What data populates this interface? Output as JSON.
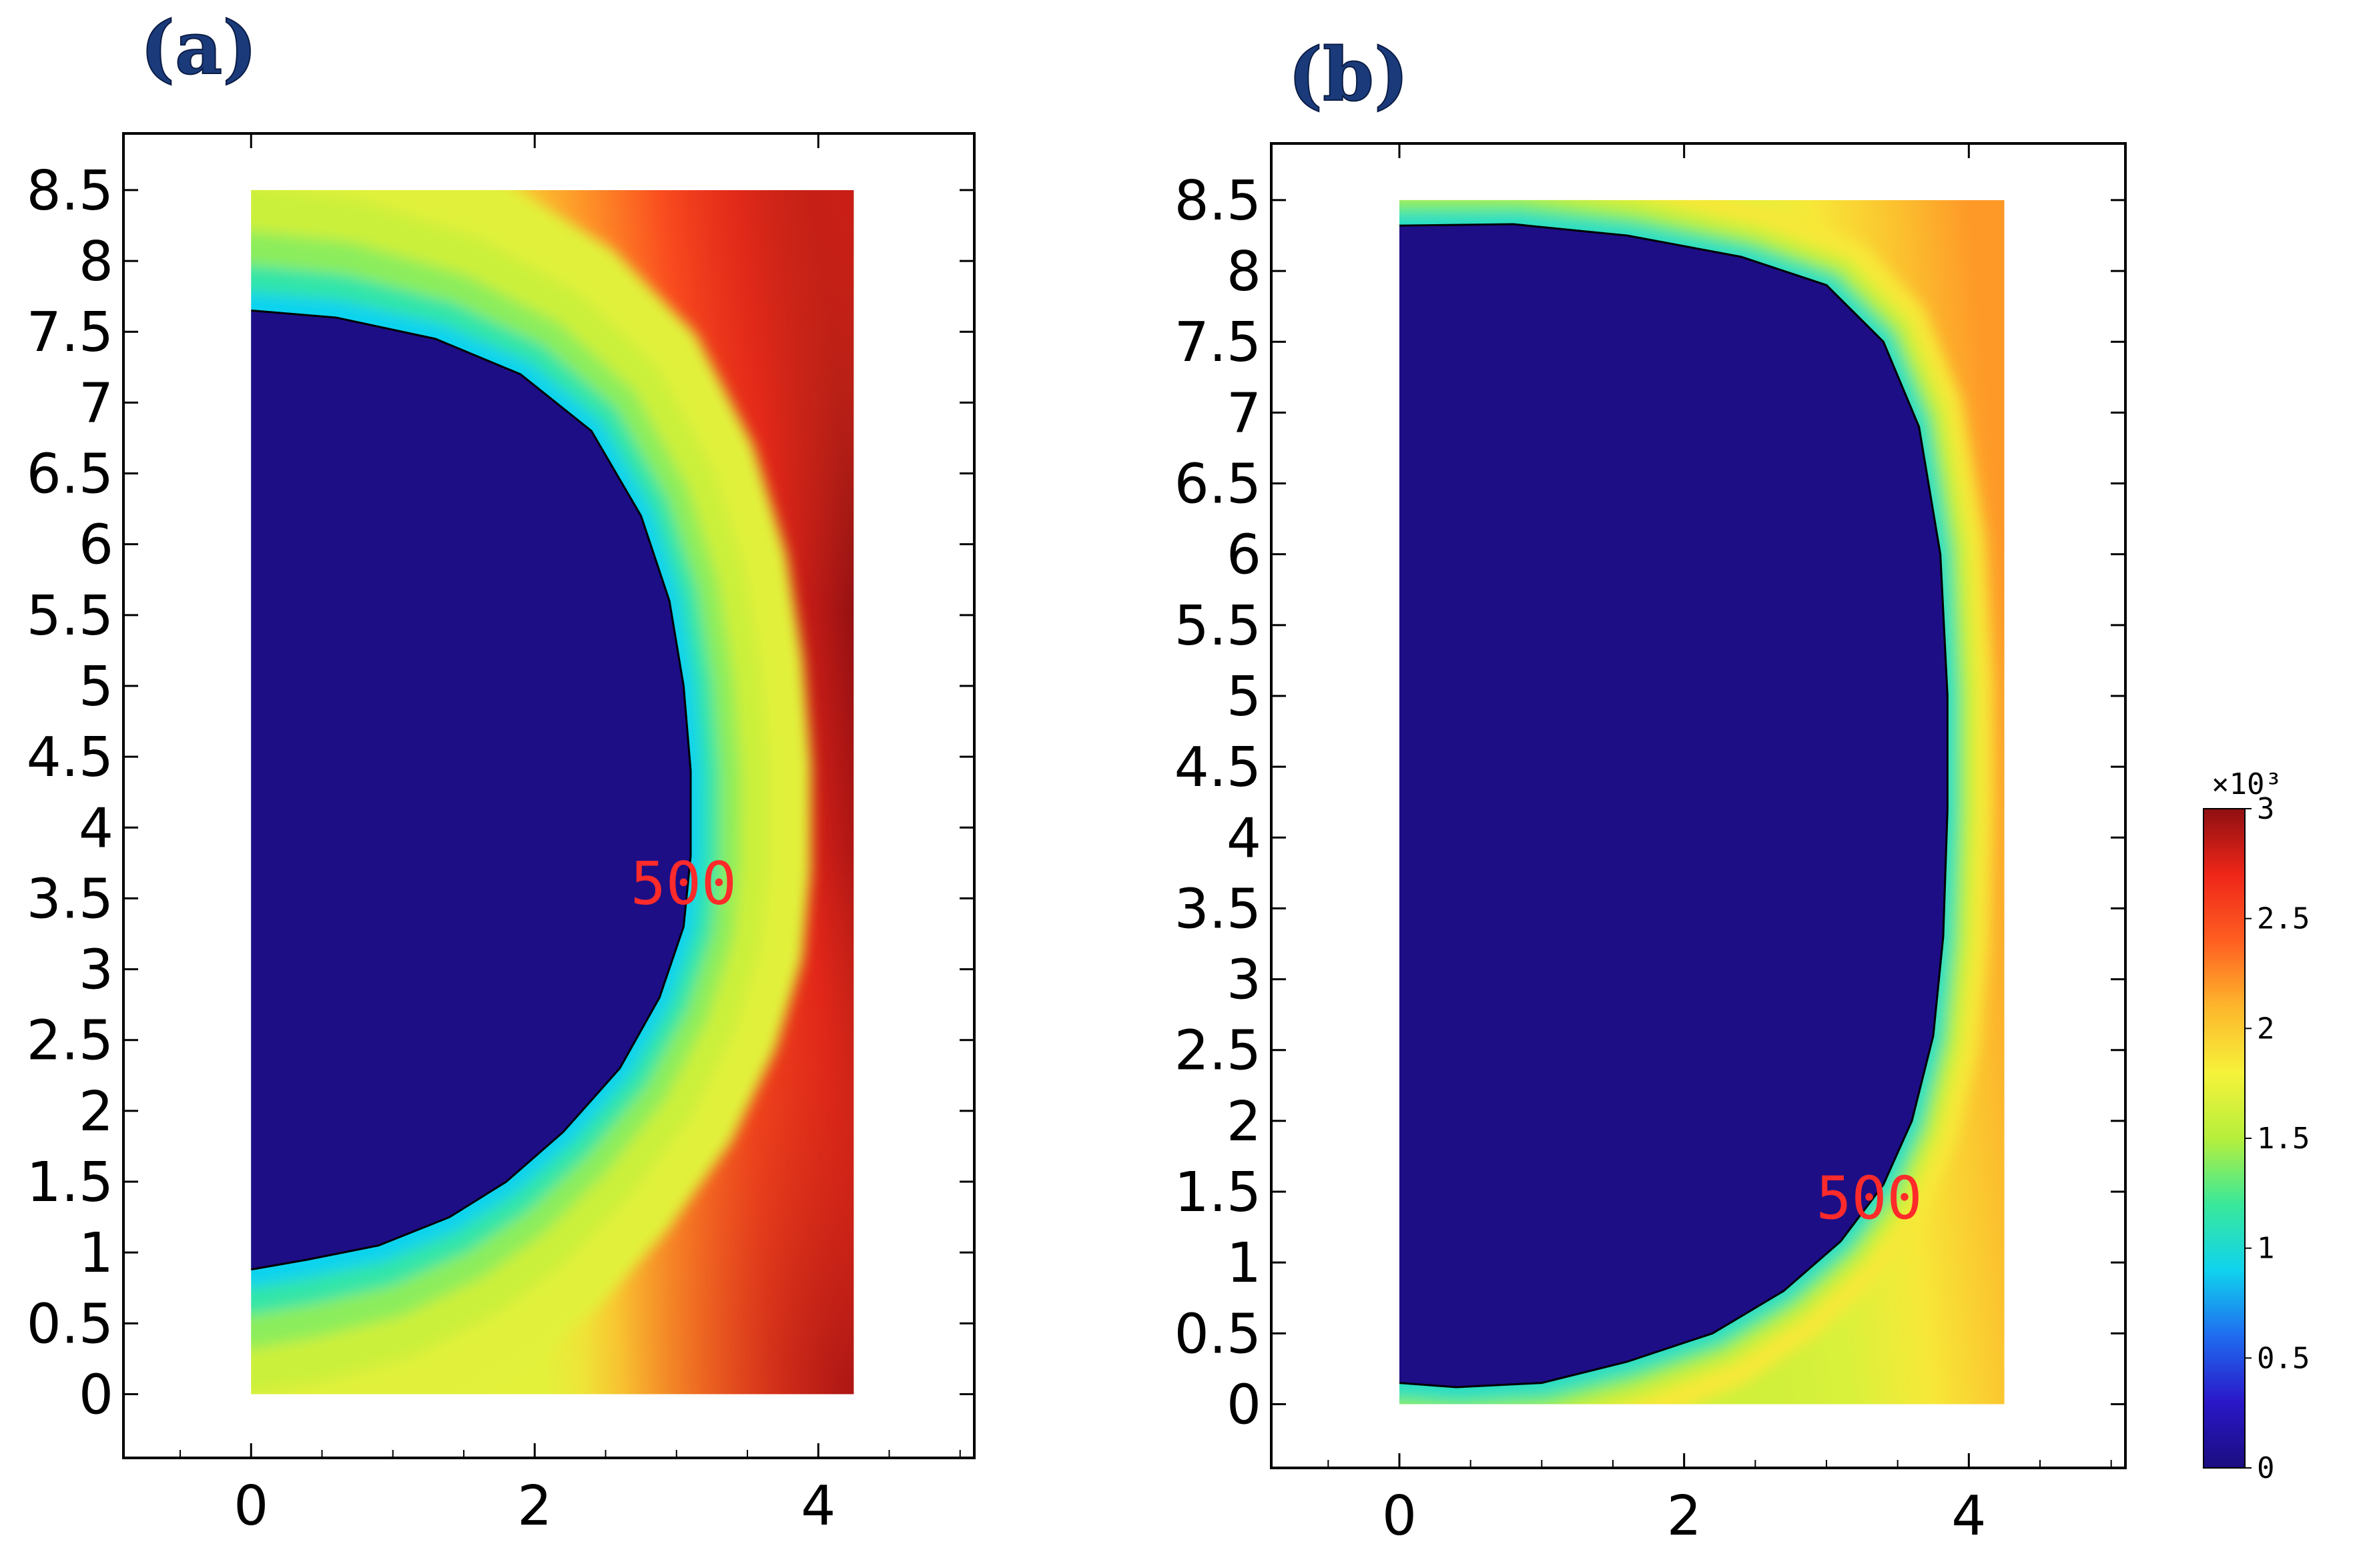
{
  "figure": {
    "panels": [
      {
        "id": "a",
        "label": "(a)"
      },
      {
        "id": "b",
        "label": "(b)"
      }
    ],
    "colorbar": {
      "multiplier": "×10³",
      "ticks": [
        "0",
        "0.5",
        "1",
        "1.5",
        "2",
        "2.5",
        "3"
      ],
      "colormap": [
        "#1b0d7f",
        "#2a17c8",
        "#1f6cf0",
        "#10d3ee",
        "#39e89a",
        "#b6ef3c",
        "#f6f23a",
        "#fdb62c",
        "#ff5e21",
        "#ef2619",
        "#8f0f12"
      ]
    }
  },
  "chart_data": [
    {
      "type": "heatmap",
      "panel": "(a)",
      "title": "",
      "xlabel": "",
      "ylabel": "",
      "xlim": [
        -0.9,
        5.1
      ],
      "ylim": [
        -0.45,
        8.9
      ],
      "xticks": [
        "0",
        "2",
        "4"
      ],
      "yticks": [
        "0",
        "0.5",
        "1",
        "1.5",
        "2",
        "2.5",
        "3",
        "3.5",
        "4",
        "4.5",
        "5",
        "5.5",
        "6",
        "6.5",
        "7",
        "7.5",
        "8",
        "8.5"
      ],
      "domain": {
        "x": [
          0,
          4.25
        ],
        "y": [
          0,
          8.5
        ]
      },
      "contour": {
        "level": 500,
        "label": "500",
        "label_at": [
          3.05,
          3.6
        ],
        "points": [
          [
            0,
            0.88
          ],
          [
            0.4,
            0.95
          ],
          [
            0.9,
            1.05
          ],
          [
            1.4,
            1.25
          ],
          [
            1.8,
            1.5
          ],
          [
            2.2,
            1.85
          ],
          [
            2.6,
            2.3
          ],
          [
            2.88,
            2.8
          ],
          [
            3.05,
            3.3
          ],
          [
            3.1,
            3.8
          ],
          [
            3.1,
            4.4
          ],
          [
            3.05,
            5.0
          ],
          [
            2.95,
            5.6
          ],
          [
            2.75,
            6.2
          ],
          [
            2.4,
            6.8
          ],
          [
            1.9,
            7.2
          ],
          [
            1.3,
            7.45
          ],
          [
            0.6,
            7.6
          ],
          [
            0,
            7.65
          ]
        ]
      },
      "field": {
        "inside_value": 0,
        "boundary_value": 500,
        "far_value": 3000
      }
    },
    {
      "type": "heatmap",
      "panel": "(b)",
      "title": "",
      "xlabel": "",
      "ylabel": "",
      "xlim": [
        -0.9,
        5.1
      ],
      "ylim": [
        -0.45,
        8.9
      ],
      "xticks": [
        "0",
        "2",
        "4"
      ],
      "yticks": [
        "0",
        "0.5",
        "1",
        "1.5",
        "2",
        "2.5",
        "3",
        "3.5",
        "4",
        "4.5",
        "5",
        "5.5",
        "6",
        "6.5",
        "7",
        "7.5",
        "8",
        "8.5"
      ],
      "domain": {
        "x": [
          0,
          4.25
        ],
        "y": [
          0,
          8.5
        ]
      },
      "contour": {
        "level": 500,
        "label": "500",
        "label_at": [
          3.3,
          1.45
        ],
        "points": [
          [
            0,
            0.15
          ],
          [
            0.4,
            0.12
          ],
          [
            1.0,
            0.15
          ],
          [
            1.6,
            0.3
          ],
          [
            2.2,
            0.5
          ],
          [
            2.7,
            0.8
          ],
          [
            3.1,
            1.15
          ],
          [
            3.4,
            1.55
          ],
          [
            3.6,
            2.0
          ],
          [
            3.75,
            2.6
          ],
          [
            3.82,
            3.3
          ],
          [
            3.85,
            4.2
          ],
          [
            3.85,
            5.0
          ],
          [
            3.8,
            6.0
          ],
          [
            3.65,
            6.9
          ],
          [
            3.4,
            7.5
          ],
          [
            3.0,
            7.9
          ],
          [
            2.4,
            8.1
          ],
          [
            1.6,
            8.25
          ],
          [
            0.8,
            8.33
          ],
          [
            0,
            8.32
          ]
        ]
      },
      "field": {
        "inside_value": 0,
        "boundary_value": 500,
        "far_value": 2200
      }
    }
  ]
}
